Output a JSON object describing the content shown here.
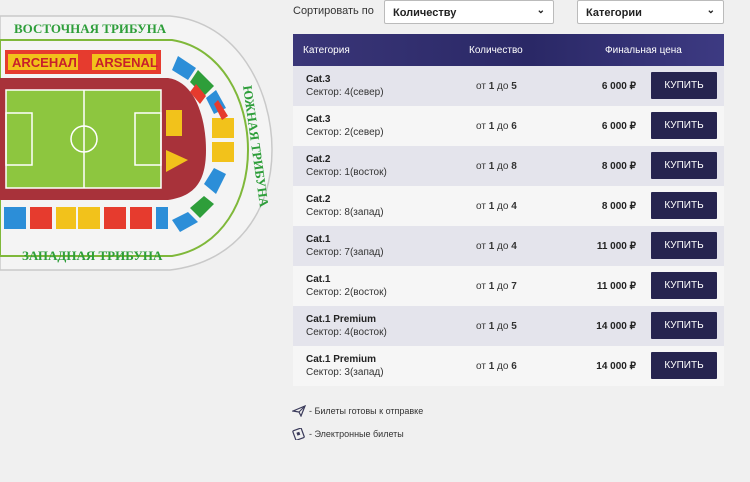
{
  "map": {
    "east_stand": "ВОСТОЧНАЯ ТРИБУНА",
    "south_stand": "ЮЖНАЯ ТРИБУНА",
    "west_stand": "ЗАПАДНАЯ ТРИБУНА",
    "banner_1": "ARСЕНАЛ",
    "banner_2": "ARSENAL"
  },
  "sort": {
    "label": "Сортировать по",
    "quantity_select": "Количеству",
    "category_select": "Категории"
  },
  "table": {
    "headers": {
      "category": "Категория",
      "quantity": "Количество",
      "price": "Финальная цена"
    },
    "rows": [
      {
        "category": "Cat.3",
        "sector": "Сектор: 4(север)",
        "qty_prefix": "от",
        "qty_min": "1",
        "qty_mid": "до",
        "qty_max": "5",
        "price": "6 000 ₽",
        "button": "КУПИТЬ"
      },
      {
        "category": "Cat.3",
        "sector": "Сектор: 2(север)",
        "qty_prefix": "от",
        "qty_min": "1",
        "qty_mid": "до",
        "qty_max": "6",
        "price": "6 000 ₽",
        "button": "КУПИТЬ"
      },
      {
        "category": "Cat.2",
        "sector": "Сектор: 1(восток)",
        "qty_prefix": "от",
        "qty_min": "1",
        "qty_mid": "до",
        "qty_max": "8",
        "price": "8 000 ₽",
        "button": "КУПИТЬ"
      },
      {
        "category": "Cat.2",
        "sector": "Сектор: 8(запад)",
        "qty_prefix": "от",
        "qty_min": "1",
        "qty_mid": "до",
        "qty_max": "4",
        "price": "8 000 ₽",
        "button": "КУПИТЬ"
      },
      {
        "category": "Cat.1",
        "sector": "Сектор: 7(запад)",
        "qty_prefix": "от",
        "qty_min": "1",
        "qty_mid": "до",
        "qty_max": "4",
        "price": "11 000 ₽",
        "button": "КУПИТЬ"
      },
      {
        "category": "Cat.1",
        "sector": "Сектор: 2(восток)",
        "qty_prefix": "от",
        "qty_min": "1",
        "qty_mid": "до",
        "qty_max": "7",
        "price": "11 000 ₽",
        "button": "КУПИТЬ"
      },
      {
        "category": "Cat.1 Premium",
        "sector": "Сектор: 4(восток)",
        "qty_prefix": "от",
        "qty_min": "1",
        "qty_mid": "до",
        "qty_max": "5",
        "price": "14 000 ₽",
        "button": "КУПИТЬ"
      },
      {
        "category": "Cat.1 Premium",
        "sector": "Сектор: 3(запад)",
        "qty_prefix": "от",
        "qty_min": "1",
        "qty_mid": "до",
        "qty_max": "6",
        "price": "14 000 ₽",
        "button": "КУПИТЬ"
      }
    ]
  },
  "legend": {
    "ready": "- Билеты готовы к отправке",
    "electronic": "- Электронные билеты"
  },
  "colors": {
    "header_bg": "#2a2866",
    "button_bg": "#26244f",
    "stand_text": "#2e9e3a",
    "pitch": "#8dc63f",
    "track": "#a8323a"
  }
}
